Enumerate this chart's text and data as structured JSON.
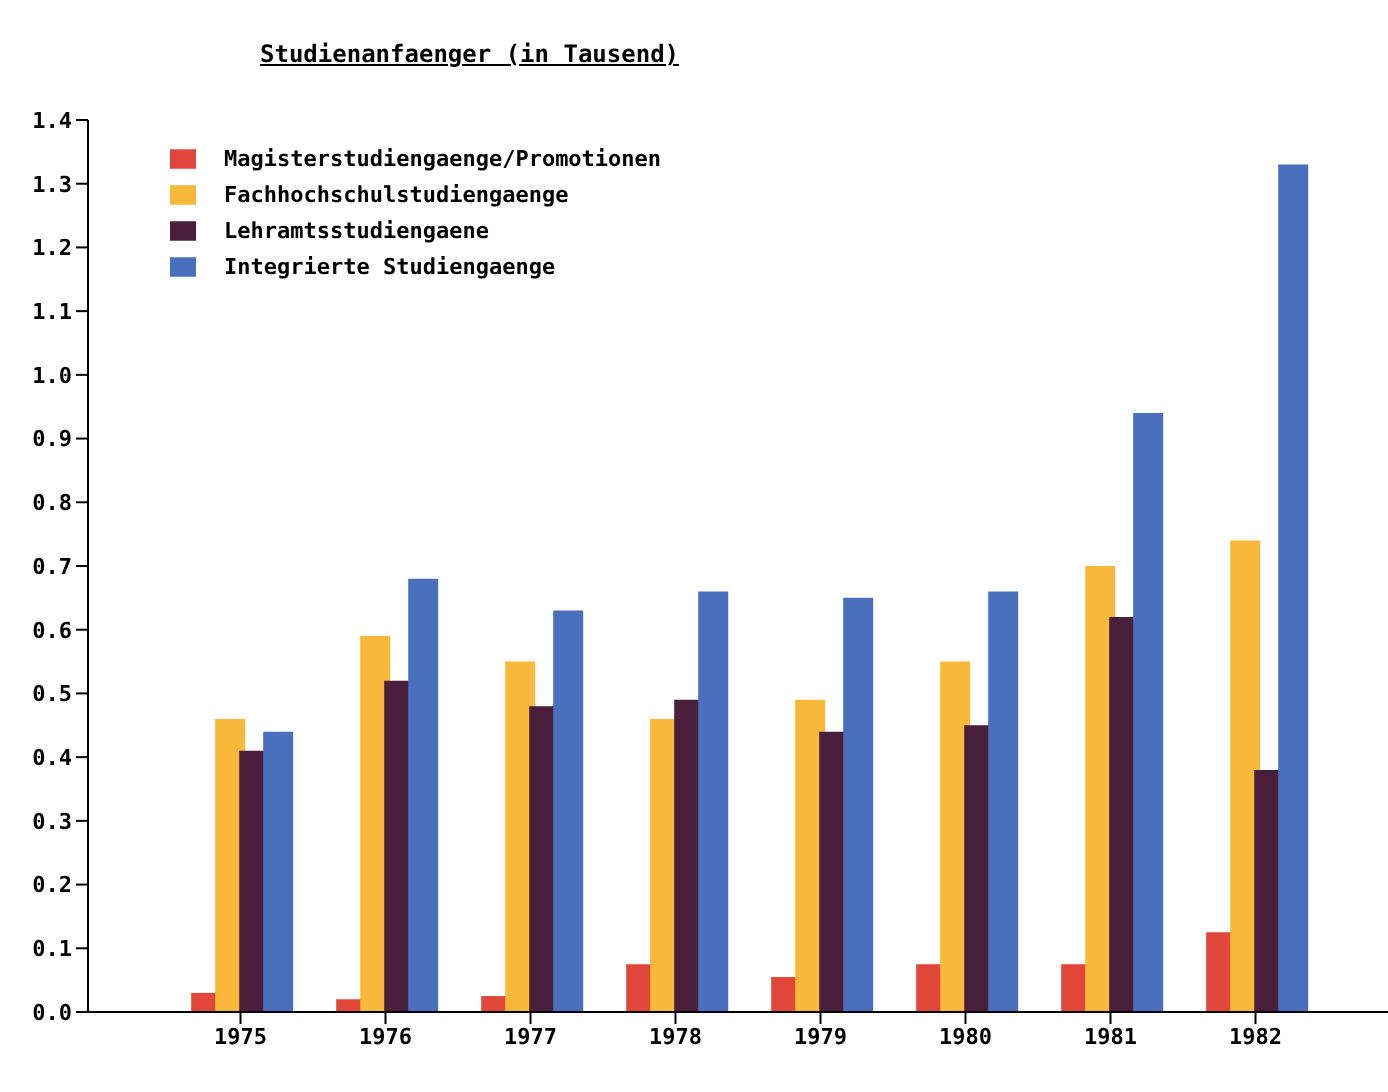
{
  "chart_data": {
    "type": "bar",
    "title": "Studienanfaenger (in Tausend)",
    "categories": [
      "1975",
      "1976",
      "1977",
      "1978",
      "1979",
      "1980",
      "1981",
      "1982"
    ],
    "series": [
      {
        "name": "Magisterstudiengaenge/Promotionen",
        "color": "#e0463a",
        "values": [
          0.03,
          0.02,
          0.025,
          0.075,
          0.055,
          0.075,
          0.075,
          0.125
        ]
      },
      {
        "name": "Fachhochschulstudiengaenge",
        "color": "#f8b83a",
        "values": [
          0.46,
          0.59,
          0.55,
          0.46,
          0.49,
          0.55,
          0.7,
          0.74
        ]
      },
      {
        "name": "Lehramtsstudiengaene",
        "color": "#4a1f3c",
        "values": [
          0.41,
          0.52,
          0.48,
          0.49,
          0.44,
          0.45,
          0.62,
          0.38
        ]
      },
      {
        "name": "Integrierte Studiengaenge",
        "color": "#4a6fbd",
        "values": [
          0.44,
          0.68,
          0.63,
          0.66,
          0.65,
          0.66,
          0.94,
          1.33
        ]
      }
    ],
    "ylim": [
      0,
      1.4
    ],
    "yticks": [
      {
        "value": 0,
        "label": "0.0"
      },
      0.1,
      0.2,
      0.3,
      0.4,
      0.5,
      0.6,
      0.7,
      0.8,
      0.9,
      {
        "value": 1,
        "label": "1.0"
      },
      1.1,
      1.2,
      1.3,
      1.4
    ],
    "grid": false,
    "legend": "top left"
  }
}
